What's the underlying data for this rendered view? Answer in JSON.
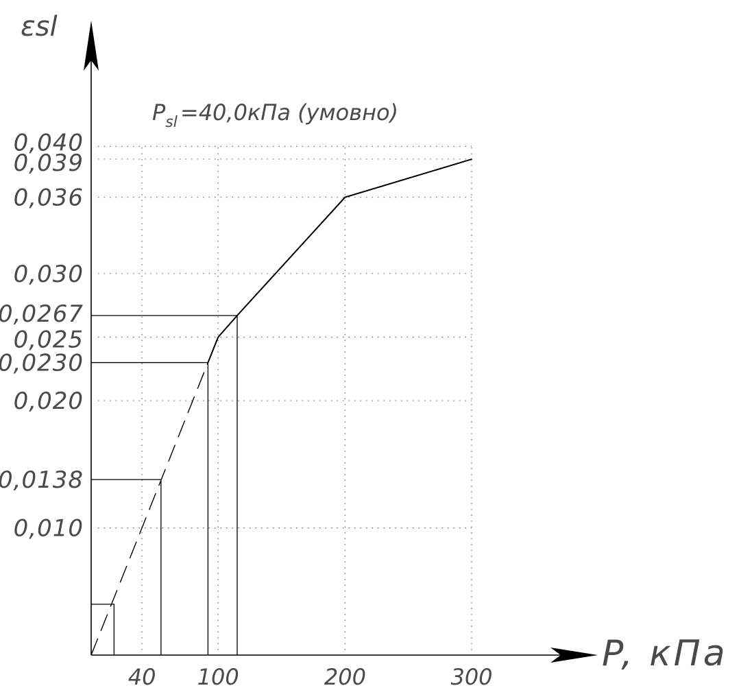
{
  "chart_data": {
    "type": "line",
    "title": "",
    "xlabel": "P, кПа",
    "ylabel": "εsl",
    "xlim": [
      0,
      300
    ],
    "ylim": [
      0,
      0.05
    ],
    "grid": "dotted",
    "series": [
      {
        "style": "solid",
        "points": [
          [
            92,
            0.023
          ],
          [
            100,
            0.025
          ],
          [
            115,
            0.0267
          ],
          [
            200,
            0.036
          ],
          [
            300,
            0.039
          ]
        ]
      },
      {
        "style": "dashed",
        "points": [
          [
            0,
            0
          ],
          [
            92,
            0.023
          ]
        ]
      }
    ],
    "x_ticks": [
      {
        "value": 40,
        "label": "40"
      },
      {
        "value": 100,
        "label": "100"
      },
      {
        "value": 200,
        "label": "200"
      },
      {
        "value": 300,
        "label": "300"
      }
    ],
    "y_ticks": [
      {
        "value": 0.04,
        "label": "0,040"
      },
      {
        "value": 0.039,
        "label": "0,039"
      },
      {
        "value": 0.036,
        "label": "0,036"
      },
      {
        "value": 0.03,
        "label": "0,030"
      },
      {
        "value": 0.0267,
        "label": "0,0267"
      },
      {
        "value": 0.025,
        "label": "0,025"
      },
      {
        "value": 0.023,
        "label": "0,0230"
      },
      {
        "value": 0.02,
        "label": "0,020"
      },
      {
        "value": 0.0138,
        "label": "0,0138"
      },
      {
        "value": 0.01,
        "label": "0,010"
      }
    ],
    "grid_y": [
      0.01,
      0.02,
      0.025,
      0.03,
      0.036,
      0.039,
      0.04
    ],
    "grid_x": [
      40,
      100,
      200,
      300
    ],
    "projections": [
      {
        "x": 55,
        "y": 0.0138
      },
      {
        "x": 92,
        "y": 0.023
      },
      {
        "x": 115,
        "y": 0.0267
      }
    ],
    "small_box": {
      "x": 18,
      "y": 0.004
    },
    "annotation": {
      "main": "P",
      "sub": "sl",
      "rest": "=40,0кПа (умовно)"
    }
  }
}
